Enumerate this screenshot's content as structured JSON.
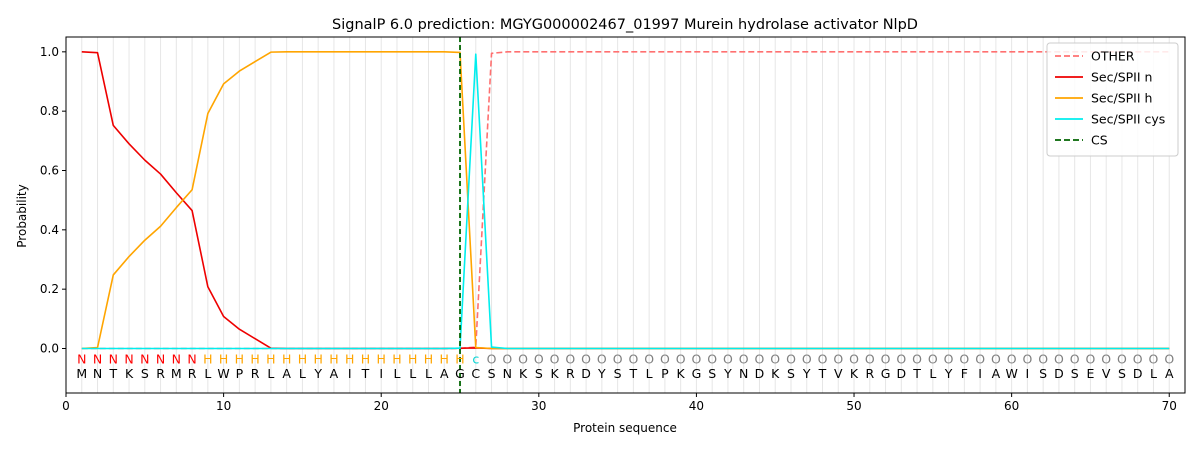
{
  "chart_data": {
    "type": "line",
    "title": "SignalP 6.0 prediction: MGYG000002467_01997 Murein hydrolase activator NlpD",
    "xlabel": "Protein sequence",
    "ylabel": "Probability",
    "xlim": [
      0,
      71
    ],
    "ylim": [
      -0.15,
      1.05
    ],
    "x_ticks": [
      0,
      10,
      20,
      30,
      40,
      50,
      60,
      70
    ],
    "y_ticks": [
      0.0,
      0.2,
      0.4,
      0.6,
      0.8,
      1.0
    ],
    "x_tick_labels": [
      "0",
      "10",
      "20",
      "30",
      "40",
      "50",
      "60",
      "70"
    ],
    "y_tick_labels": [
      "0.0",
      "0.2",
      "0.4",
      "0.6",
      "0.8",
      "1.0"
    ],
    "grid": "vertical lines at each residue",
    "legend_position": "top-right",
    "sequence": [
      "M",
      "N",
      "T",
      "K",
      "S",
      "R",
      "M",
      "R",
      "L",
      "W",
      "P",
      "R",
      "L",
      "A",
      "L",
      "Y",
      "A",
      "I",
      "T",
      "I",
      "L",
      "L",
      "L",
      "A",
      "G",
      "C",
      "S",
      "N",
      "K",
      "S",
      "K",
      "R",
      "D",
      "Y",
      "S",
      "T",
      "L",
      "P",
      "K",
      "G",
      "S",
      "Y",
      "N",
      "D",
      "K",
      "S",
      "Y",
      "T",
      "V",
      "K",
      "R",
      "G",
      "D",
      "T",
      "L",
      "Y",
      "F",
      "I",
      "A",
      "W",
      "I",
      "S",
      "D",
      "S",
      "E",
      "V",
      "S",
      "D",
      "L",
      "A"
    ],
    "annotation": [
      "N",
      "N",
      "N",
      "N",
      "N",
      "N",
      "N",
      "N",
      "H",
      "H",
      "H",
      "H",
      "H",
      "H",
      "H",
      "H",
      "H",
      "H",
      "H",
      "H",
      "H",
      "H",
      "H",
      "H",
      "H",
      "c",
      "O",
      "O",
      "O",
      "O",
      "O",
      "O",
      "O",
      "O",
      "O",
      "O",
      "O",
      "O",
      "O",
      "O",
      "O",
      "O",
      "O",
      "O",
      "O",
      "O",
      "O",
      "O",
      "O",
      "O",
      "O",
      "O",
      "O",
      "O",
      "O",
      "O",
      "O",
      "O",
      "O",
      "O",
      "O",
      "O",
      "O",
      "O",
      "O",
      "O",
      "O",
      "O",
      "O",
      "O"
    ],
    "annotation_colors": {
      "N": "#ff0000",
      "H": "#ffa500",
      "c": "#00d2d2",
      "O": "#808080"
    },
    "series": [
      {
        "name": "OTHER",
        "color": "#ff7070",
        "style": "dashed",
        "values": [
          0,
          0,
          0,
          0,
          0,
          0,
          0,
          0,
          0,
          0,
          0,
          0,
          0,
          0,
          0,
          0,
          0,
          0,
          0,
          0,
          0,
          0,
          0,
          0,
          0,
          0.005,
          0.995,
          1,
          1,
          1,
          1,
          1,
          1,
          1,
          1,
          1,
          1,
          1,
          1,
          1,
          1,
          1,
          1,
          1,
          1,
          1,
          1,
          1,
          1,
          1,
          1,
          1,
          1,
          1,
          1,
          1,
          1,
          1,
          1,
          1,
          1,
          1,
          1,
          1,
          1,
          1,
          1,
          1,
          1,
          1
        ]
      },
      {
        "name": "Sec/SPII n",
        "color": "#ee0000",
        "style": "solid",
        "values": [
          1.0,
          0.997,
          0.752,
          0.69,
          0.635,
          0.588,
          0.525,
          0.465,
          0.208,
          0.108,
          0.065,
          0.033,
          0.001,
          0,
          0,
          0,
          0,
          0,
          0,
          0,
          0,
          0,
          0,
          0,
          0.001,
          0.002,
          0,
          0,
          0,
          0,
          0,
          0,
          0,
          0,
          0,
          0,
          0,
          0,
          0,
          0,
          0,
          0,
          0,
          0,
          0,
          0,
          0,
          0,
          0,
          0,
          0,
          0,
          0,
          0,
          0,
          0,
          0,
          0,
          0,
          0,
          0,
          0,
          0,
          0,
          0,
          0,
          0,
          0,
          0,
          0
        ]
      },
      {
        "name": "Sec/SPII h",
        "color": "#ffa500",
        "style": "solid",
        "values": [
          0,
          0.003,
          0.248,
          0.31,
          0.365,
          0.412,
          0.475,
          0.535,
          0.792,
          0.892,
          0.935,
          0.967,
          0.999,
          1.0,
          1.0,
          1.0,
          1.0,
          1.0,
          1.0,
          1.0,
          1.0,
          1.0,
          1.0,
          1.0,
          0.998,
          0.003,
          0,
          0,
          0,
          0,
          0,
          0,
          0,
          0,
          0,
          0,
          0,
          0,
          0,
          0,
          0,
          0,
          0,
          0,
          0,
          0,
          0,
          0,
          0,
          0,
          0,
          0,
          0,
          0,
          0,
          0,
          0,
          0,
          0,
          0,
          0,
          0,
          0,
          0,
          0,
          0,
          0,
          0,
          0,
          0
        ]
      },
      {
        "name": "Sec/SPII cys",
        "color": "#00eeee",
        "style": "solid",
        "values": [
          0,
          0,
          0,
          0,
          0,
          0,
          0,
          0,
          0,
          0,
          0,
          0,
          0,
          0,
          0,
          0,
          0,
          0,
          0,
          0,
          0,
          0,
          0,
          0,
          0.001,
          0.992,
          0.005,
          0,
          0,
          0,
          0,
          0,
          0,
          0,
          0,
          0,
          0,
          0,
          0,
          0,
          0,
          0,
          0,
          0,
          0,
          0,
          0,
          0,
          0,
          0,
          0,
          0,
          0,
          0,
          0,
          0,
          0,
          0,
          0,
          0,
          0,
          0,
          0,
          0,
          0,
          0,
          0,
          0,
          0,
          0
        ]
      },
      {
        "name": "CS",
        "color": "#006400",
        "style": "dashed",
        "cleavage_x": 25
      }
    ]
  }
}
